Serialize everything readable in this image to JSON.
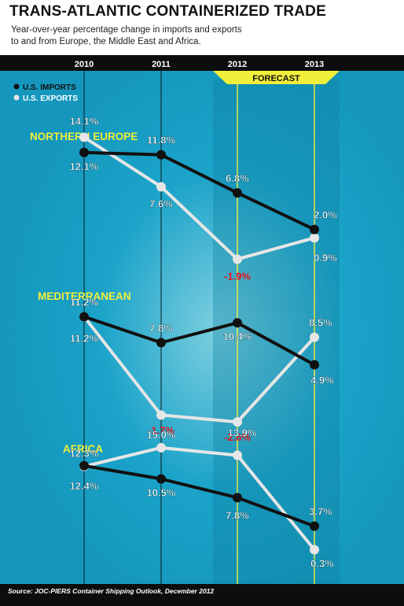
{
  "title": "TRANS-ATLANTIC CONTAINERIZED TRADE",
  "subtitle_line1": "Year-over-year percentage change in imports and exports",
  "subtitle_line2": "to and from Europe, the Middle East and Africa.",
  "source": "Source: JOC-PIERS Container Shipping Outlook, December 2012",
  "forecast_label": "FORECAST",
  "colors": {
    "background": "#1ba3c9",
    "header_bar": "#0d0d0d",
    "imports": "#111111",
    "exports": "#e6e6e6",
    "forecast_lines": "#f2ef3a",
    "section_titles": "#f2ef3a",
    "negative_labels": "#e8121c"
  },
  "chart_data": {
    "type": "line",
    "categories": [
      "2010",
      "2011",
      "2012",
      "2013"
    ],
    "forecast_categories": [
      "2012",
      "2013"
    ],
    "legend": [
      "U.S. IMPORTS",
      "U.S. EXPORTS"
    ],
    "legend_position": "top-left",
    "panels": [
      {
        "title": "NORTHERN EUROPE",
        "series": [
          {
            "name": "U.S. IMPORTS",
            "values": [
              12.1,
              11.8,
              6.8,
              2.0
            ],
            "labels": [
              "12.1%",
              "11.8%",
              "6.8%",
              "2.0%"
            ]
          },
          {
            "name": "U.S. EXPORTS",
            "values": [
              14.1,
              7.6,
              -1.9,
              0.9
            ],
            "labels": [
              "14.1%",
              "7.6%",
              "-1.9%",
              "0.9%"
            ]
          }
        ]
      },
      {
        "title": "MEDITERRANEAN",
        "series": [
          {
            "name": "U.S. IMPORTS",
            "values": [
              11.2,
              7.8,
              10.4,
              4.9
            ],
            "labels": [
              "11.2%",
              "7.8%",
              "10.4%",
              "4.9%"
            ]
          },
          {
            "name": "U.S. EXPORTS",
            "values": [
              11.2,
              -1.7,
              -2.6,
              8.5
            ],
            "labels": [
              "11.2%",
              "-1.7%",
              "-2.6%",
              "8.5%"
            ]
          }
        ]
      },
      {
        "title": "AFRICA",
        "series": [
          {
            "name": "U.S. IMPORTS",
            "values": [
              12.4,
              10.5,
              7.8,
              3.7
            ],
            "labels": [
              "12.4%",
              "10.5%",
              "7.8%",
              "3.7%"
            ]
          },
          {
            "name": "U.S. EXPORTS",
            "values": [
              12.3,
              15.0,
              13.9,
              0.3
            ],
            "labels": [
              "12.3%",
              "15.0%",
              "13.9%",
              "0.3%"
            ]
          }
        ]
      }
    ]
  }
}
